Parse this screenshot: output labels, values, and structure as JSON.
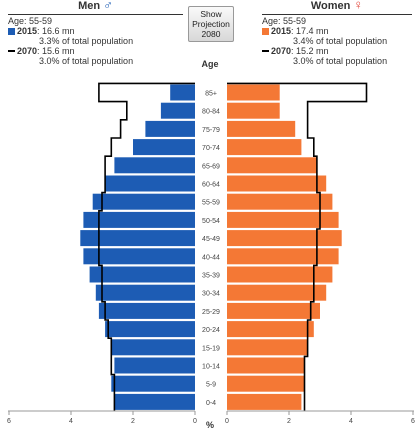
{
  "men_legend": {
    "title": "Men",
    "symbol": "♂",
    "age_line": "Age: 55-59",
    "y2015_label": "2015",
    "y2015_value": ": 16.6 mn",
    "y2015_share": "3.3% of total population",
    "y2070_label": "2070",
    "y2070_value": ": 15.6 mn",
    "y2070_share": "3.0% of total population"
  },
  "women_legend": {
    "title": "Women",
    "symbol": "♀",
    "age_line": "Age: 55-59",
    "y2015_label": "2015",
    "y2015_value": ": 17.4 mn",
    "y2015_share": "3.4% of total population",
    "y2070_label": "2070",
    "y2070_value": ": 15.2 mn",
    "y2070_share": "3.0% of total population"
  },
  "projection_button": {
    "line1": "Show",
    "line2": "Projection",
    "line3": "2080"
  },
  "colors": {
    "men": "#1d5cb4",
    "women": "#f47835",
    "outline": "#000000"
  },
  "chart_data": {
    "type": "bar",
    "orientation": "horizontal-population-pyramid",
    "age_axis_title": "Age",
    "x_axis_unit": "%",
    "x_ticks_men": [
      6,
      4,
      2,
      0
    ],
    "x_ticks_women": [
      0,
      2,
      4,
      6
    ],
    "xlim": [
      0,
      6
    ],
    "categories": [
      "0-4",
      "5-9",
      "10-14",
      "15-19",
      "20-24",
      "25-29",
      "30-34",
      "35-39",
      "40-44",
      "45-49",
      "50-54",
      "55-59",
      "60-64",
      "65-69",
      "70-74",
      "75-79",
      "80-84",
      "85+"
    ],
    "series": [
      {
        "name": "Men 2015",
        "side": "men",
        "style": "bars",
        "values": [
          2.6,
          2.7,
          2.6,
          2.7,
          2.9,
          3.1,
          3.2,
          3.4,
          3.6,
          3.7,
          3.6,
          3.3,
          2.9,
          2.6,
          2.0,
          1.6,
          1.1,
          0.8
        ]
      },
      {
        "name": "Women 2015",
        "side": "women",
        "style": "bars",
        "values": [
          2.4,
          2.5,
          2.5,
          2.6,
          2.8,
          3.0,
          3.2,
          3.4,
          3.6,
          3.7,
          3.6,
          3.4,
          3.2,
          2.9,
          2.4,
          2.2,
          1.7,
          1.7
        ]
      },
      {
        "name": "Men 2070",
        "side": "men",
        "style": "outline",
        "values": [
          2.6,
          2.6,
          2.7,
          2.7,
          2.8,
          2.9,
          3.0,
          3.0,
          3.1,
          3.1,
          3.1,
          3.0,
          2.9,
          2.9,
          2.7,
          2.4,
          2.2,
          3.1
        ]
      },
      {
        "name": "Women 2070",
        "side": "women",
        "style": "outline",
        "values": [
          2.5,
          2.5,
          2.5,
          2.6,
          2.6,
          2.7,
          2.8,
          2.8,
          2.9,
          2.9,
          3.0,
          3.0,
          2.9,
          2.9,
          2.8,
          2.6,
          2.6,
          4.5
        ]
      }
    ]
  }
}
